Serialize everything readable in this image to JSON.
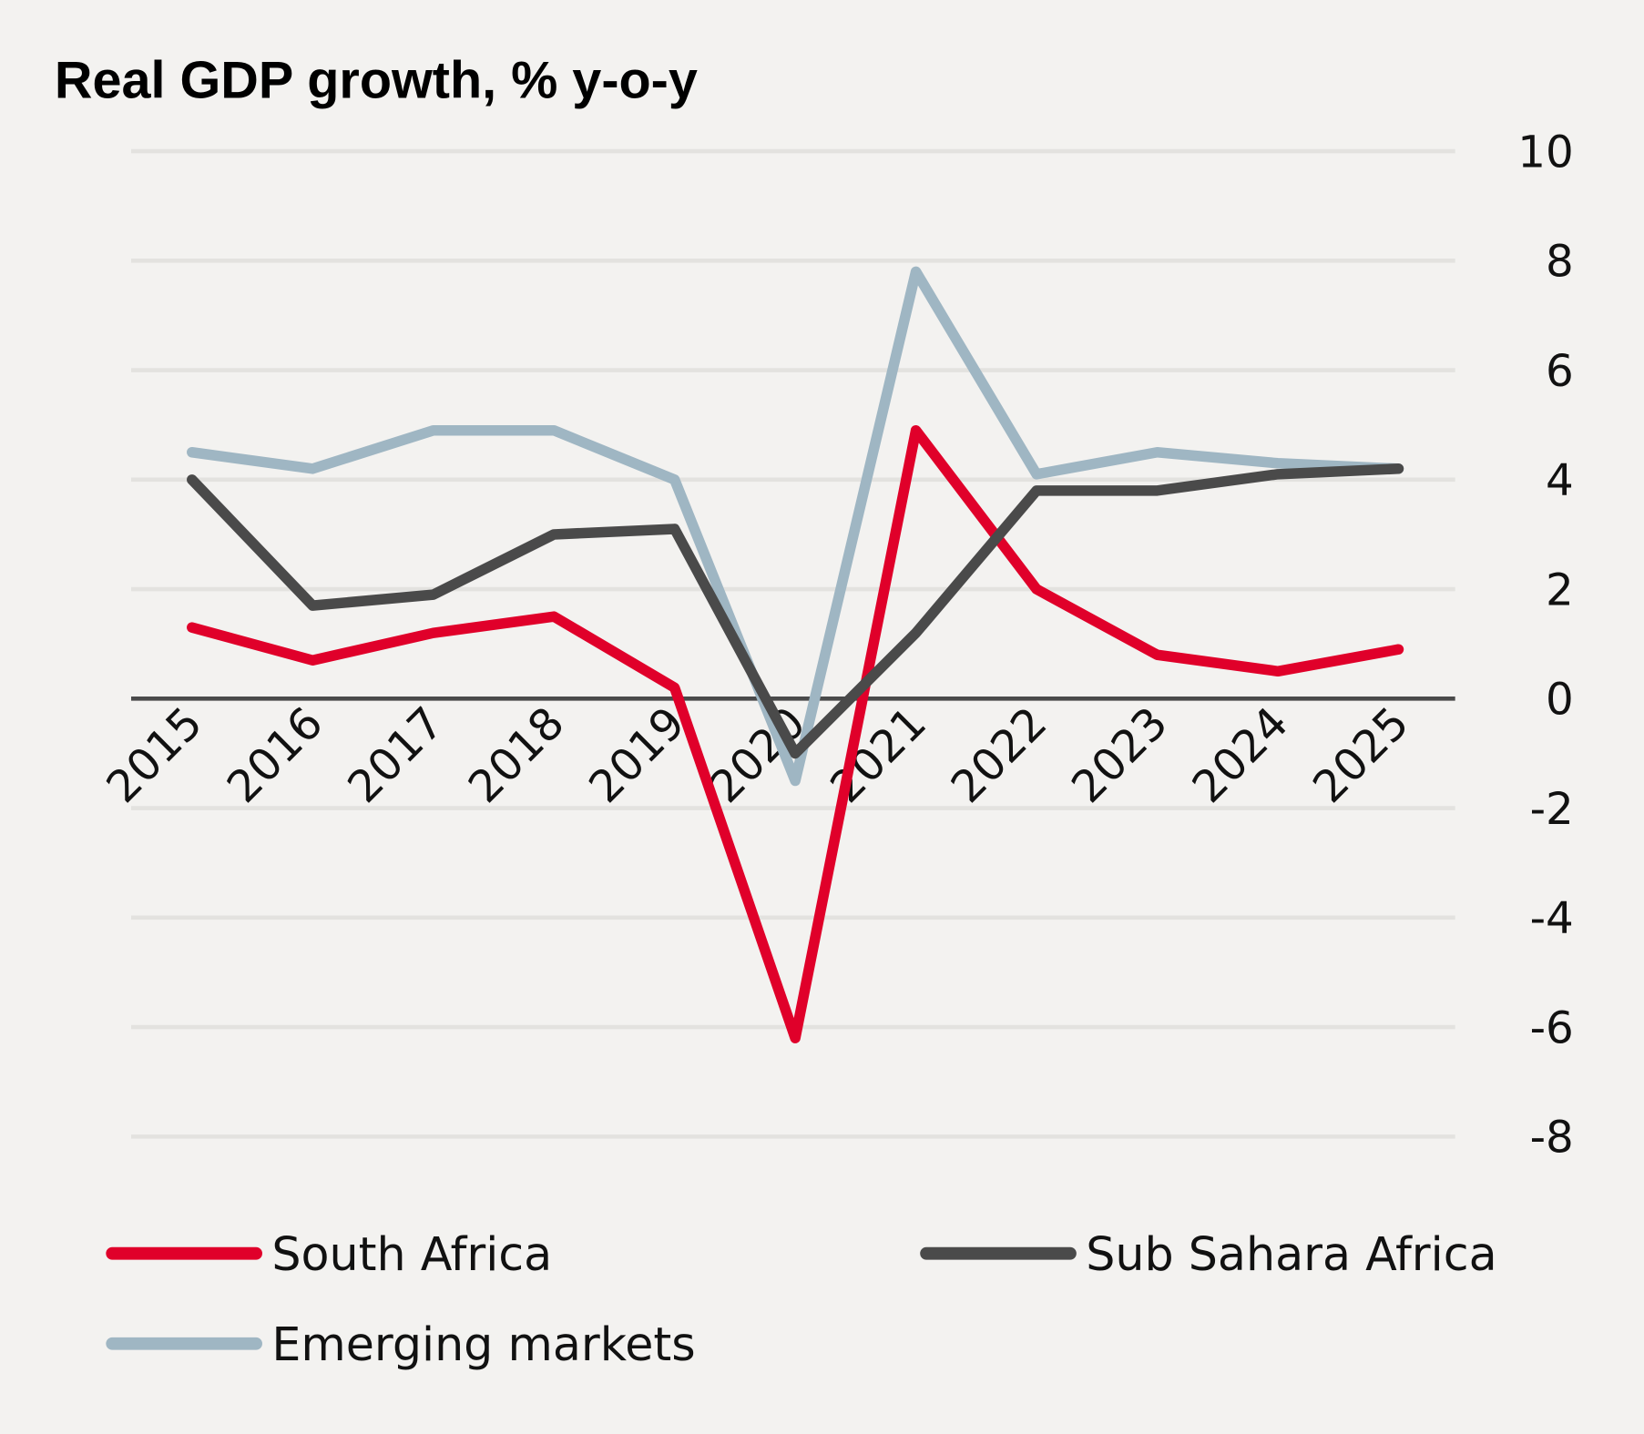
{
  "chart_data": {
    "type": "line",
    "title": "Real GDP growth, % y-o-y",
    "xlabel": "",
    "ylabel": "",
    "categories": [
      "2015",
      "2016",
      "2017",
      "2018",
      "2019",
      "2020",
      "2021",
      "2022",
      "2023",
      "2024",
      "2025"
    ],
    "ylim": [
      -8,
      10
    ],
    "yticks": [
      10,
      8,
      6,
      4,
      2,
      0,
      -2,
      -4,
      -6,
      -8
    ],
    "grid": true,
    "legend_position": "bottom",
    "series": [
      {
        "name": "South Africa",
        "color": "#e0002a",
        "values": [
          1.3,
          0.7,
          1.2,
          1.5,
          0.2,
          -6.2,
          4.9,
          2.0,
          0.8,
          0.5,
          0.9
        ]
      },
      {
        "name": "Sub Sahara Africa",
        "color": "#4a4a4a",
        "values": [
          4.0,
          1.7,
          1.9,
          3.0,
          3.1,
          -1.0,
          1.2,
          3.8,
          3.8,
          4.1,
          4.2
        ]
      },
      {
        "name": "Emerging markets",
        "color": "#9fb6c3",
        "values": [
          4.5,
          4.2,
          4.9,
          4.9,
          4.0,
          -1.5,
          7.8,
          4.1,
          4.5,
          4.3,
          4.2
        ]
      }
    ]
  }
}
